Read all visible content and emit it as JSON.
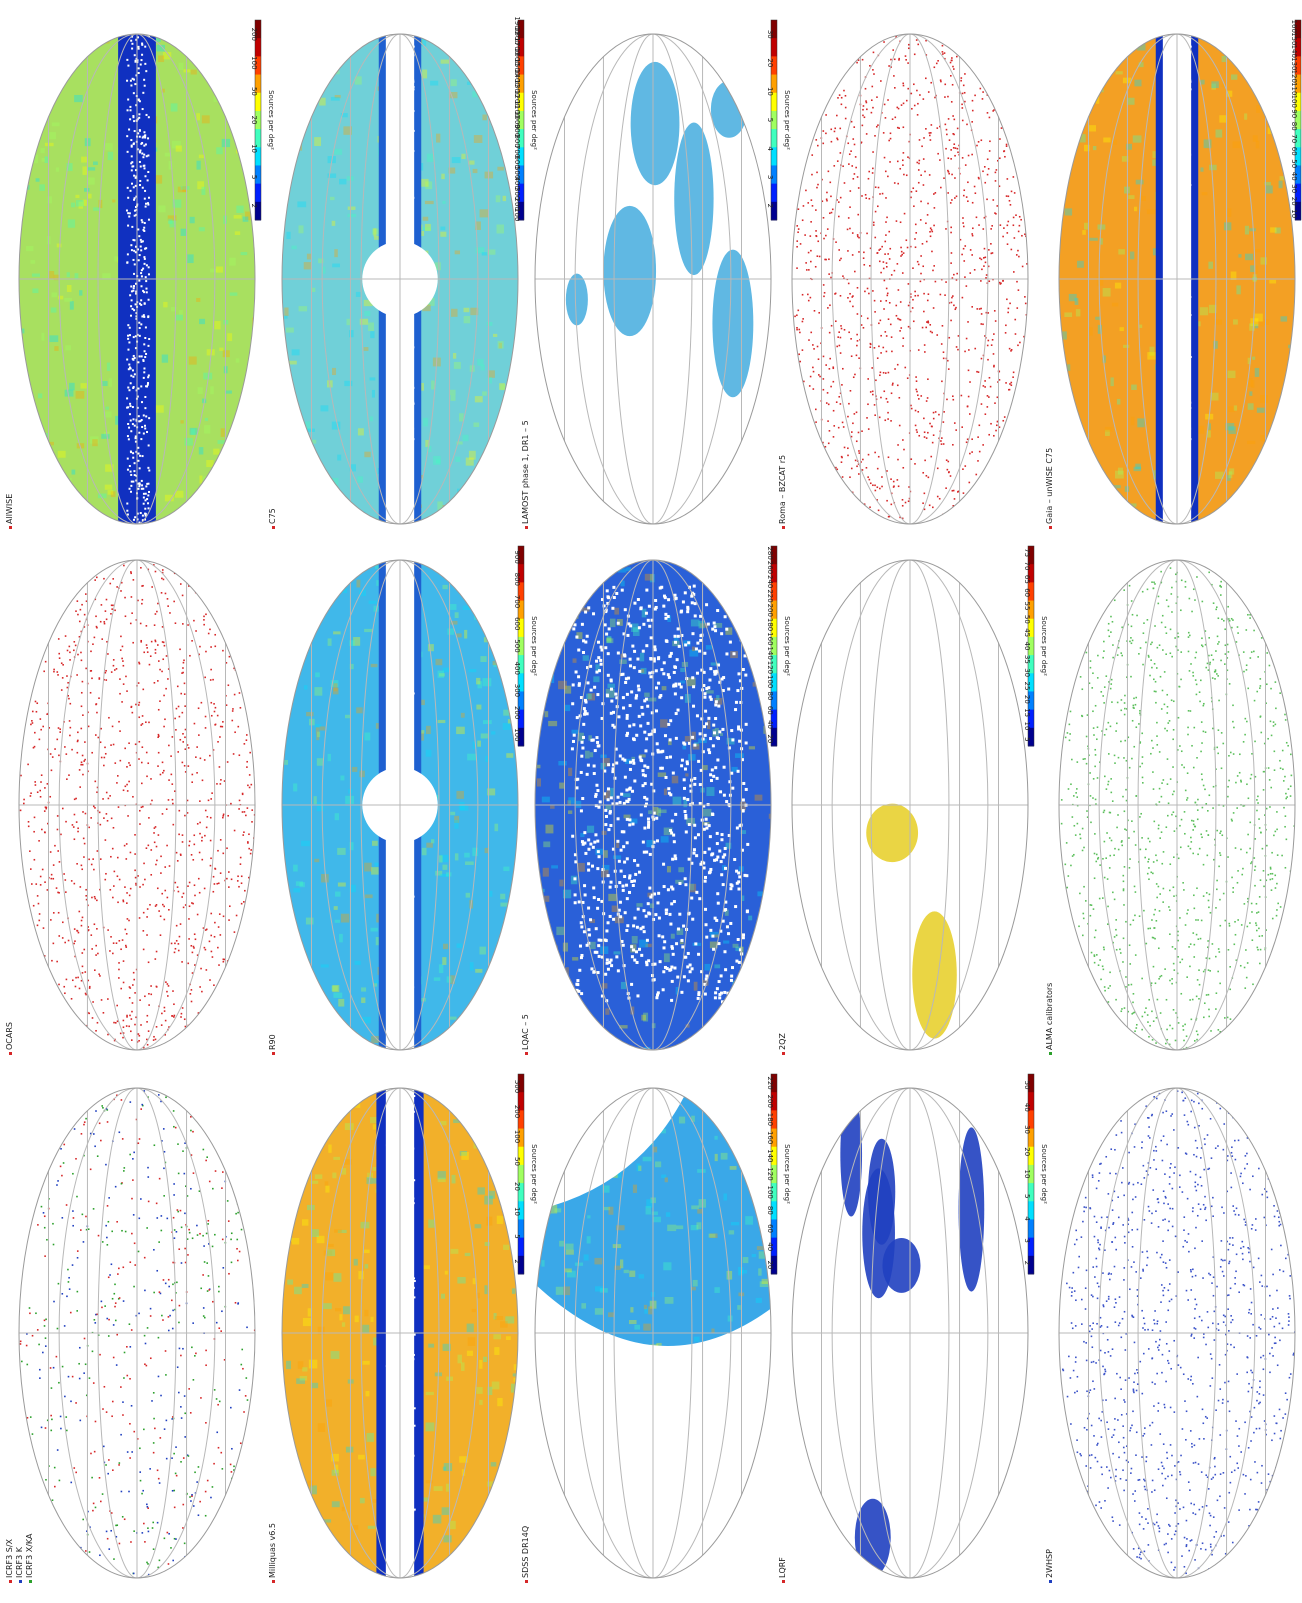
{
  "colorbar_label": "Sources per deg²",
  "maps": [
    {
      "id": "icrf3",
      "style": "points",
      "legend": [
        "ICRF3 S/X",
        "ICRF3 K",
        "ICRF3 X/KA"
      ],
      "legend_colors": [
        "#d62728",
        "#1f3fbf",
        "#2ca02c"
      ],
      "point_colors": [
        "#d62728",
        "#1f3fbf",
        "#2ca02c"
      ],
      "point_count": 750
    },
    {
      "id": "ocars",
      "style": "points",
      "legend": [
        "OCARS"
      ],
      "legend_colors": [
        "#d62728"
      ],
      "point_colors": [
        "#d62728"
      ],
      "point_count": 1300
    },
    {
      "id": "allwise",
      "style": "dense",
      "legend": [
        "AllWISE"
      ],
      "legend_colors": [
        "#d62728",
        "#1f3fbf"
      ],
      "colorbar_ticks": [
        "200",
        "100",
        "50",
        "20",
        "10",
        "5",
        "2"
      ],
      "base": "#a8e060",
      "plane": "#1030c0",
      "plane_halfwidth": 0.16,
      "mask": "none"
    },
    {
      "id": "milliquas",
      "style": "dense",
      "legend": [
        "Milliquas v6.5"
      ],
      "legend_colors": [
        "#d62728",
        "#1f3fbf"
      ],
      "colorbar_ticks": [
        "500",
        "200",
        "100",
        "50",
        "20",
        "10",
        "5",
        "2"
      ],
      "base": "#f2b02a",
      "plane": "#1030c0",
      "plane_halfwidth": 0.2,
      "mask": "plane"
    },
    {
      "id": "r90",
      "style": "dense",
      "legend": [
        "R90"
      ],
      "legend_colors": [
        "#d62728",
        "#1f3fbf"
      ],
      "colorbar_ticks": [
        "900",
        "800",
        "700",
        "600",
        "500",
        "400",
        "300",
        "200",
        "100"
      ],
      "base": "#40b8ea",
      "plane": "#1f60d0",
      "plane_halfwidth": 0.18,
      "mask": "plane-bulge"
    },
    {
      "id": "c75",
      "style": "dense",
      "legend": [
        "C75"
      ],
      "legend_colors": [
        "#d62728",
        "#1f3fbf"
      ],
      "colorbar_ticks": [
        "1900",
        "1800",
        "1700",
        "1600",
        "1500",
        "1400",
        "1300",
        "1200",
        "1100",
        "1000",
        "900",
        "800",
        "700",
        "600",
        "500",
        "400",
        "300",
        "200",
        "100"
      ],
      "base": "#70d0d8",
      "plane": "#1f60d0",
      "plane_halfwidth": 0.18,
      "mask": "plane-bulge"
    },
    {
      "id": "sdss",
      "style": "dense",
      "legend": [
        "SDSS DR14Q"
      ],
      "legend_colors": [
        "#d62728",
        "#1f3fbf"
      ],
      "colorbar_ticks": [
        "220",
        "200",
        "180",
        "160",
        "140",
        "120",
        "100",
        "80",
        "60",
        "40",
        "20"
      ],
      "base": "#3aa8e8",
      "plane": "#1f60d0",
      "plane_halfwidth": 0.0,
      "mask": "footprint"
    },
    {
      "id": "lqac",
      "style": "dense",
      "legend": [
        "LQAC – 5"
      ],
      "legend_colors": [
        "#d62728",
        "#1f3fbf"
      ],
      "colorbar_ticks": [
        "280",
        "260",
        "240",
        "220",
        "200",
        "180",
        "160",
        "140",
        "120",
        "100",
        "80",
        "60",
        "40",
        "20"
      ],
      "base": "#2a60d8",
      "plane": "#1030c0",
      "plane_halfwidth": 0.0,
      "mask": "speckle"
    },
    {
      "id": "lamost",
      "style": "dense",
      "legend": [
        "LAMOST phase 1, DR1 – 5"
      ],
      "legend_colors": [
        "#d62728",
        "#1f3fbf"
      ],
      "colorbar_ticks": [
        "30",
        "20",
        "10",
        "5",
        "4",
        "3",
        "2"
      ],
      "base": "#4fb0e0",
      "plane": "#1030c0",
      "plane_halfwidth": 0.0,
      "mask": "patches"
    },
    {
      "id": "lqrf",
      "style": "dense",
      "legend": [
        "LQRF"
      ],
      "legend_colors": [
        "#d62728",
        "#1f3fbf"
      ],
      "colorbar_ticks": [
        "50",
        "40",
        "30",
        "20",
        "10",
        "5",
        "4",
        "3",
        "2"
      ],
      "base": "#2040c0",
      "plane": "#1030c0",
      "plane_halfwidth": 0.0,
      "mask": "stripes"
    },
    {
      "id": "2qz",
      "style": "dense",
      "legend": [
        "2QZ"
      ],
      "legend_colors": [
        "#d62728",
        "#1f3fbf"
      ],
      "colorbar_ticks": [
        "75",
        "70",
        "65",
        "60",
        "55",
        "50",
        "45",
        "40",
        "35",
        "30",
        "25",
        "20",
        "15",
        "10",
        "5"
      ],
      "base": "#e8d030",
      "plane": "#1030c0",
      "plane_halfwidth": 0.0,
      "mask": "strips"
    },
    {
      "id": "roma",
      "style": "points",
      "legend": [
        "Roma – BZCAT r5"
      ],
      "legend_colors": [
        "#d62728"
      ],
      "point_colors": [
        "#d62728"
      ],
      "point_count": 1400
    },
    {
      "id": "2whsp",
      "style": "points",
      "legend": [
        "2WHSP"
      ],
      "legend_colors": [
        "#1f3fbf"
      ],
      "point_colors": [
        "#3a52c8"
      ],
      "point_count": 1300
    },
    {
      "id": "alma",
      "style": "points",
      "legend": [
        "ALMA calibrators"
      ],
      "legend_colors": [
        "#2ca02c"
      ],
      "point_colors": [
        "#5cbf5c"
      ],
      "point_count": 1300
    },
    {
      "id": "gaia-unwise",
      "style": "dense",
      "legend": [
        "Gaia – unWISE C75"
      ],
      "legend_colors": [
        "#d62728",
        "#1f3fbf"
      ],
      "colorbar_ticks": [
        "160",
        "150",
        "140",
        "130",
        "120",
        "110",
        "100",
        "90",
        "80",
        "70",
        "60",
        "50",
        "40",
        "30",
        "20",
        "10"
      ],
      "base": "#f3a024",
      "plane": "#1030c0",
      "plane_halfwidth": 0.18,
      "mask": "plane"
    }
  ]
}
